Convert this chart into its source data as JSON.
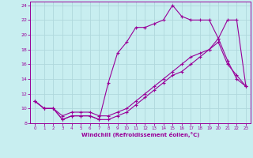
{
  "xlabel": "Windchill (Refroidissement éolien,°C)",
  "background_color": "#c8eef0",
  "line_color": "#990099",
  "grid_color": "#b0d8dc",
  "xlim": [
    -0.5,
    23.5
  ],
  "ylim": [
    8,
    24.5
  ],
  "yticks": [
    8,
    10,
    12,
    14,
    16,
    18,
    20,
    22,
    24
  ],
  "xticks": [
    0,
    1,
    2,
    3,
    4,
    5,
    6,
    7,
    8,
    9,
    10,
    11,
    12,
    13,
    14,
    15,
    16,
    17,
    18,
    19,
    20,
    21,
    22,
    23
  ],
  "line1_x": [
    0,
    1,
    2,
    3,
    4,
    5,
    6,
    7,
    8,
    9,
    10,
    11,
    12,
    13,
    14,
    15,
    16,
    17,
    18,
    19,
    20,
    21,
    22,
    23
  ],
  "line1_y": [
    11,
    10,
    10,
    8.5,
    9,
    9,
    9,
    8.5,
    13.5,
    17.5,
    19,
    21,
    21,
    21.5,
    22,
    24,
    22.5,
    22,
    22,
    22,
    19.5,
    22,
    22,
    13
  ],
  "line2_x": [
    0,
    1,
    2,
    3,
    4,
    5,
    6,
    7,
    8,
    9,
    10,
    11,
    12,
    13,
    14,
    15,
    16,
    17,
    18,
    19,
    20,
    21,
    22,
    23
  ],
  "line2_y": [
    11,
    10,
    10,
    8.5,
    9,
    9,
    9,
    8.5,
    8.5,
    9,
    9.5,
    10.5,
    11.5,
    12.5,
    13.5,
    14.5,
    15,
    16,
    17,
    18,
    19,
    16,
    14.5,
    13
  ],
  "line3_x": [
    0,
    1,
    2,
    3,
    4,
    5,
    6,
    7,
    8,
    9,
    10,
    11,
    12,
    13,
    14,
    15,
    16,
    17,
    18,
    19,
    20,
    21,
    22,
    23
  ],
  "line3_y": [
    11,
    10,
    10,
    9,
    9.5,
    9.5,
    9.5,
    9,
    9,
    9.5,
    10,
    11,
    12,
    13,
    14,
    15,
    16,
    17,
    17.5,
    18,
    19.5,
    16.5,
    14,
    13
  ]
}
